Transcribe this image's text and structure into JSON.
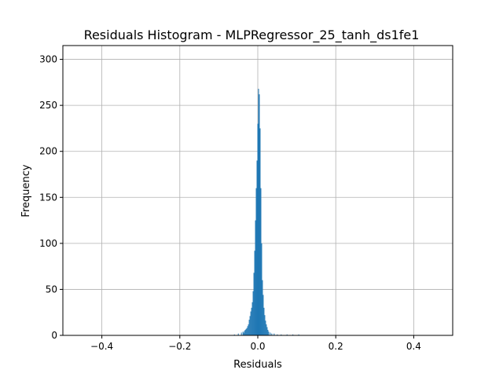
{
  "chart_data": {
    "type": "bar",
    "title": "Residuals Histogram - MLPRegressor_25_tanh_ds1fe1",
    "xlabel": "Residuals",
    "ylabel": "Frequency",
    "xlim": [
      -0.5,
      0.5
    ],
    "ylim": [
      0,
      315
    ],
    "xticks": [
      -0.4,
      -0.2,
      0.0,
      0.2,
      0.4
    ],
    "xtick_labels": [
      "−0.4",
      "−0.2",
      "0.0",
      "0.2",
      "0.4"
    ],
    "yticks": [
      0,
      50,
      100,
      150,
      200,
      250,
      300
    ],
    "ytick_labels": [
      "0",
      "50",
      "100",
      "150",
      "200",
      "250",
      "300"
    ],
    "grid": true,
    "bar_color": "#1f77b4",
    "bin_width": 0.002,
    "bins": [
      {
        "x": -0.06,
        "count": 1
      },
      {
        "x": -0.05,
        "count": 2
      },
      {
        "x": -0.042,
        "count": 3
      },
      {
        "x": -0.038,
        "count": 4
      },
      {
        "x": -0.036,
        "count": 3
      },
      {
        "x": -0.034,
        "count": 5
      },
      {
        "x": -0.032,
        "count": 6
      },
      {
        "x": -0.03,
        "count": 7
      },
      {
        "x": -0.028,
        "count": 8
      },
      {
        "x": -0.026,
        "count": 10
      },
      {
        "x": -0.024,
        "count": 12
      },
      {
        "x": -0.022,
        "count": 17
      },
      {
        "x": -0.02,
        "count": 21
      },
      {
        "x": -0.018,
        "count": 26
      },
      {
        "x": -0.016,
        "count": 30
      },
      {
        "x": -0.014,
        "count": 36
      },
      {
        "x": -0.012,
        "count": 48
      },
      {
        "x": -0.01,
        "count": 68
      },
      {
        "x": -0.008,
        "count": 92
      },
      {
        "x": -0.006,
        "count": 125
      },
      {
        "x": -0.004,
        "count": 160
      },
      {
        "x": -0.002,
        "count": 190
      },
      {
        "x": 0.0,
        "count": 230
      },
      {
        "x": 0.002,
        "count": 268
      },
      {
        "x": 0.004,
        "count": 262
      },
      {
        "x": 0.006,
        "count": 225
      },
      {
        "x": 0.008,
        "count": 160
      },
      {
        "x": 0.01,
        "count": 100
      },
      {
        "x": 0.012,
        "count": 60
      },
      {
        "x": 0.014,
        "count": 44
      },
      {
        "x": 0.016,
        "count": 30
      },
      {
        "x": 0.018,
        "count": 22
      },
      {
        "x": 0.02,
        "count": 16
      },
      {
        "x": 0.022,
        "count": 12
      },
      {
        "x": 0.024,
        "count": 9
      },
      {
        "x": 0.026,
        "count": 6
      },
      {
        "x": 0.028,
        "count": 4
      },
      {
        "x": 0.032,
        "count": 3
      },
      {
        "x": 0.036,
        "count": 2
      },
      {
        "x": 0.042,
        "count": 2
      },
      {
        "x": 0.05,
        "count": 1
      },
      {
        "x": 0.06,
        "count": 1
      },
      {
        "x": 0.075,
        "count": 1
      },
      {
        "x": 0.09,
        "count": 1
      },
      {
        "x": 0.105,
        "count": 1
      }
    ]
  }
}
